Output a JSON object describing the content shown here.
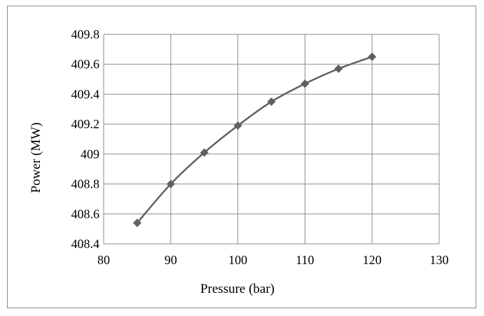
{
  "chart_data": {
    "type": "line",
    "title": "",
    "xlabel": "Pressure (bar)",
    "ylabel": "Power (MW)",
    "xlim": [
      80,
      130
    ],
    "ylim": [
      408.4,
      409.8
    ],
    "xticks": [
      80,
      90,
      100,
      110,
      120,
      130
    ],
    "yticks": [
      408.4,
      408.6,
      408.8,
      409,
      409.2,
      409.4,
      409.6,
      409.8
    ],
    "xtick_labels": [
      "80",
      "90",
      "100",
      "110",
      "120",
      "130"
    ],
    "ytick_labels": [
      "408.4",
      "408.6",
      "408.8",
      "409",
      "409.2",
      "409.4",
      "409.6",
      "409.8"
    ],
    "grid": true,
    "legend": "none",
    "marker": "diamond",
    "line_style": "smooth",
    "series_color": "#606060",
    "series": [
      {
        "x": [
          85,
          90,
          95,
          100,
          105,
          110,
          115,
          120
        ],
        "y": [
          408.54,
          408.8,
          409.01,
          409.19,
          409.35,
          409.47,
          409.57,
          409.65
        ]
      }
    ]
  }
}
